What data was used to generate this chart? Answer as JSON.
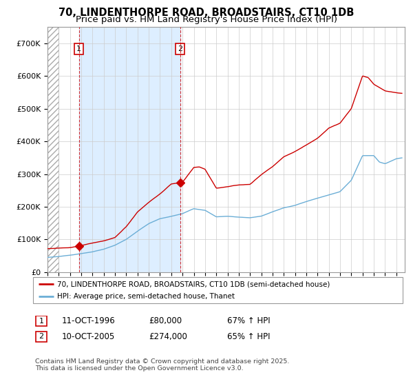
{
  "title": "70, LINDENTHORPE ROAD, BROADSTAIRS, CT10 1DB",
  "subtitle": "Price paid vs. HM Land Registry's House Price Index (HPI)",
  "title_fontsize": 10.5,
  "subtitle_fontsize": 9.5,
  "ylim": [
    0,
    750000
  ],
  "yticks": [
    0,
    100000,
    200000,
    300000,
    400000,
    500000,
    600000,
    700000
  ],
  "ytick_labels": [
    "£0",
    "£100K",
    "£200K",
    "£300K",
    "£400K",
    "£500K",
    "£600K",
    "£700K"
  ],
  "xlim_start": 1994.0,
  "xlim_end": 2025.75,
  "hpi_color": "#6baed6",
  "hpi_fill_color": "#ddeeff",
  "price_color": "#cc0000",
  "marker_color": "#cc0000",
  "legend_label_price": "70, LINDENTHORPE ROAD, BROADSTAIRS, CT10 1DB (semi-detached house)",
  "legend_label_hpi": "HPI: Average price, semi-detached house, Thanet",
  "sale1_year": 1996.79,
  "sale1_price": 80000,
  "sale1_label": "1",
  "sale2_year": 2005.79,
  "sale2_price": 274000,
  "sale2_label": "2",
  "footer": "Contains HM Land Registry data © Crown copyright and database right 2025.\nThis data is licensed under the Open Government Licence v3.0.",
  "hatch_region_end": 1995.0,
  "background_color": "#ffffff",
  "plot_bg_color": "#ffffff",
  "grid_color": "#cccccc",
  "shade_between_sales_color": "#ddeeff"
}
